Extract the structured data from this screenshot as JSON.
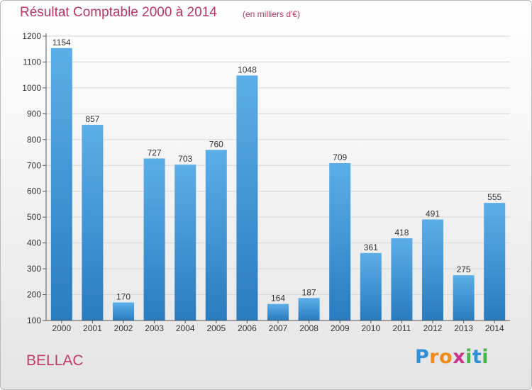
{
  "chart_data": {
    "type": "bar",
    "title": "Résultat Comptable 2000 à 2014",
    "subtitle": "(en milliers d'€)",
    "categories": [
      "2000",
      "2001",
      "2002",
      "2003",
      "2004",
      "2005",
      "2006",
      "2007",
      "2008",
      "2009",
      "2010",
      "2011",
      "2012",
      "2013",
      "2014"
    ],
    "values": [
      1154,
      857,
      170,
      727,
      703,
      760,
      1048,
      164,
      187,
      709,
      361,
      418,
      491,
      275,
      555
    ],
    "ylim": [
      100,
      1200
    ],
    "yticks": [
      100,
      200,
      300,
      400,
      500,
      600,
      700,
      800,
      900,
      1000,
      1100,
      1200
    ],
    "xlabel": "",
    "ylabel": "",
    "grid": true
  },
  "commune": "BELLAC",
  "brand": {
    "letters": [
      "P",
      "r",
      "o",
      "x",
      "i",
      "t",
      "i"
    ],
    "colors": [
      "#2f8fd8",
      "#f08a1c",
      "#f08a1c",
      "#c8348c",
      "#46b84a",
      "#2f8fd8",
      "#46b84a"
    ]
  },
  "colors": {
    "bar_top": "#5caee8",
    "bar_bottom": "#2a7bbf",
    "grid": "#d6d6d6",
    "axis": "#555555",
    "title": "#b5365f"
  }
}
